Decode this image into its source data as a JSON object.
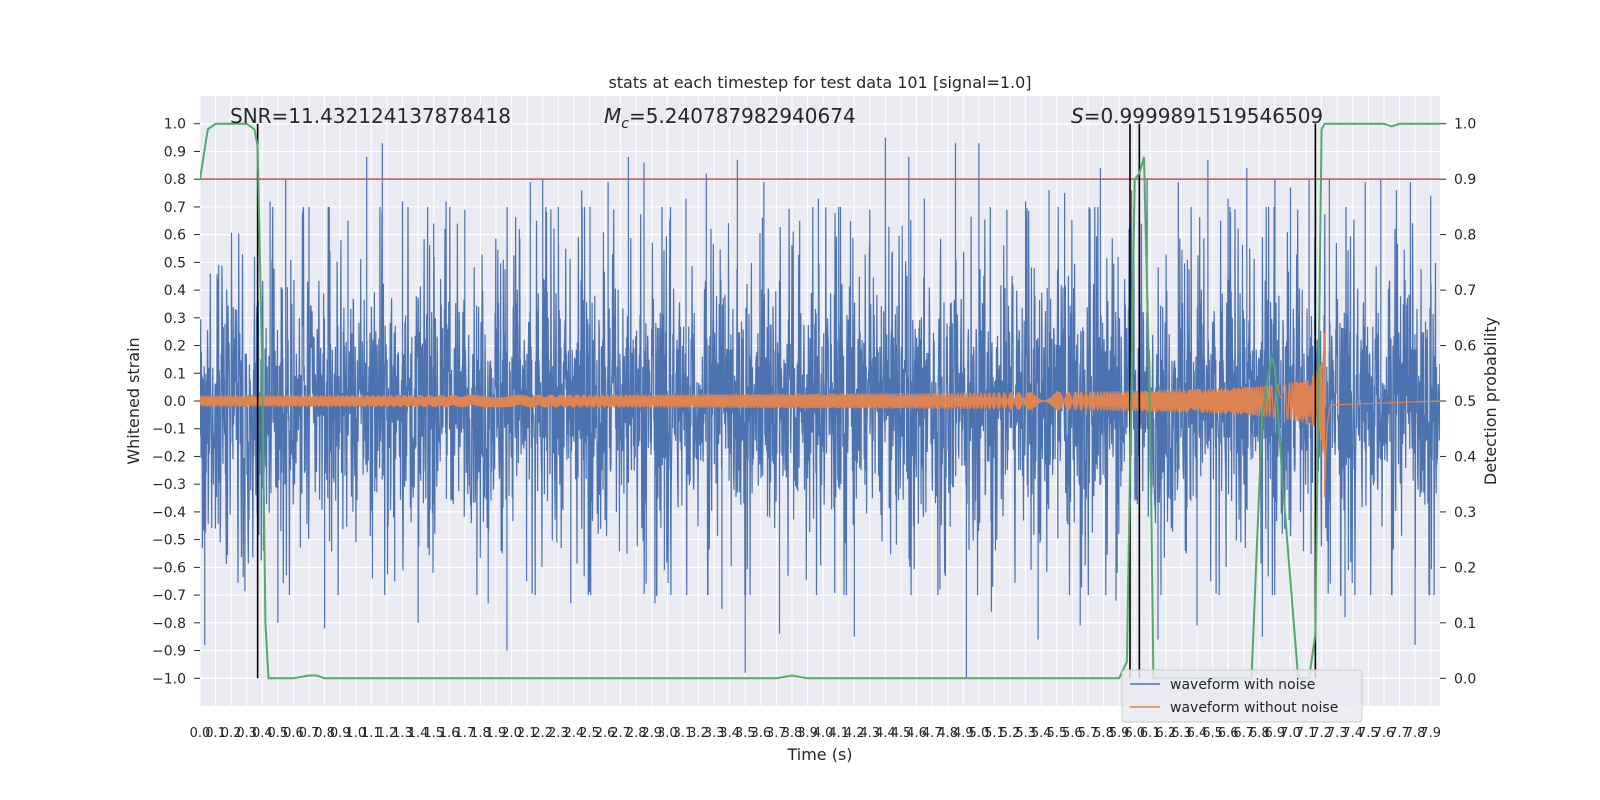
{
  "chart_data": {
    "type": "line",
    "title": "stats at each timestep for test data 101 [signal=1.0]",
    "xlabel": "Time (s)",
    "ylabel": "Whitened strain",
    "y2label": "Detection probability",
    "xlim": [
      0.0,
      7.96
    ],
    "ylim": [
      -1.1,
      1.1
    ],
    "y2lim": [
      -0.05,
      1.05
    ],
    "xticks": [
      "0.0",
      "0.1",
      "0.2",
      "0.3",
      "0.4",
      "0.5",
      "0.6",
      "0.7",
      "0.8",
      "0.9",
      "1.0",
      "1.1",
      "1.2",
      "1.3",
      "1.4",
      "1.5",
      "1.6",
      "1.7",
      "1.8",
      "1.9",
      "2.0",
      "2.1",
      "2.2",
      "2.3",
      "2.4",
      "2.5",
      "2.6",
      "2.7",
      "2.8",
      "2.9",
      "3.0",
      "3.1",
      "3.2",
      "3.3",
      "3.4",
      "3.5",
      "3.6",
      "3.7",
      "3.8",
      "3.9",
      "4.0",
      "4.1",
      "4.2",
      "4.3",
      "4.4",
      "4.5",
      "4.6",
      "4.7",
      "4.8",
      "4.9",
      "5.0",
      "5.1",
      "5.2",
      "5.3",
      "5.4",
      "5.5",
      "5.6",
      "5.7",
      "5.8",
      "5.9",
      "6.0",
      "6.1",
      "6.2",
      "6.3",
      "6.4",
      "6.5",
      "6.6",
      "6.7",
      "6.8",
      "6.9",
      "7.0",
      "7.1",
      "7.2",
      "7.3",
      "7.4",
      "7.5",
      "7.6",
      "7.7",
      "7.8",
      "7.9"
    ],
    "yticks": [
      "−1.0",
      "−0.9",
      "−0.8",
      "−0.7",
      "−0.6",
      "−0.5",
      "−0.4",
      "−0.3",
      "−0.2",
      "−0.1",
      "0.0",
      "0.1",
      "0.2",
      "0.3",
      "0.4",
      "0.5",
      "0.6",
      "0.7",
      "0.8",
      "0.9",
      "1.0"
    ],
    "y2ticks": [
      "0.0",
      "0.1",
      "0.2",
      "0.3",
      "0.4",
      "0.5",
      "0.6",
      "0.7",
      "0.8",
      "0.9",
      "1.0"
    ],
    "grid": true,
    "legend_position": "lower-right",
    "threshold": {
      "y2": 0.9,
      "color": "#c44e52"
    },
    "vertical_lines": [
      0.37,
      5.97,
      6.03,
      7.16
    ],
    "annotations": {
      "snr": "SNR=11.432124137878418",
      "mc_symbol": "M",
      "mc_sub": "c",
      "mc_value": "=5.240787982940674",
      "s_symbol": "S",
      "s_value": "=0.9999891519546509"
    },
    "series": [
      {
        "name": "waveform with noise",
        "color": "#4c72b0",
        "kind": "noise",
        "envelope": [
          0.3,
          0.45
        ],
        "spikes": [
          [
            0.03,
            -0.88
          ],
          [
            0.12,
            0.49
          ],
          [
            0.35,
            0.52
          ],
          [
            0.45,
            0.72
          ],
          [
            0.5,
            -0.8
          ],
          [
            0.55,
            0.8
          ],
          [
            0.7,
            0.7
          ],
          [
            0.8,
            -0.82
          ],
          [
            0.95,
            0.65
          ],
          [
            1.07,
            0.88
          ],
          [
            1.17,
            0.93
          ],
          [
            1.25,
            -0.65
          ],
          [
            1.3,
            0.72
          ],
          [
            1.4,
            -0.8
          ],
          [
            1.5,
            0.64
          ],
          [
            1.58,
            0.72
          ],
          [
            1.7,
            0.69
          ],
          [
            1.85,
            -0.73
          ],
          [
            1.97,
            -0.9
          ],
          [
            2.05,
            0.62
          ],
          [
            2.12,
            0.79
          ],
          [
            2.2,
            0.8
          ],
          [
            2.3,
            0.7
          ],
          [
            2.38,
            -0.73
          ],
          [
            2.45,
            0.76
          ],
          [
            2.5,
            -0.69
          ],
          [
            2.62,
            0.79
          ],
          [
            2.75,
            0.88
          ],
          [
            2.85,
            0.86
          ],
          [
            2.92,
            -0.73
          ],
          [
            3.02,
            0.7
          ],
          [
            3.12,
            0.73
          ],
          [
            3.25,
            0.82
          ],
          [
            3.35,
            -0.75
          ],
          [
            3.45,
            0.87
          ],
          [
            3.5,
            -0.98
          ],
          [
            3.62,
            0.79
          ],
          [
            3.72,
            -0.84
          ],
          [
            3.85,
            0.65
          ],
          [
            3.97,
            0.73
          ],
          [
            4.1,
            0.7
          ],
          [
            4.2,
            -0.85
          ],
          [
            4.3,
            0.69
          ],
          [
            4.4,
            0.95
          ],
          [
            4.55,
            0.88
          ],
          [
            4.65,
            0.73
          ],
          [
            4.75,
            -0.68
          ],
          [
            4.85,
            0.93
          ],
          [
            4.92,
            -1.0
          ],
          [
            5.0,
            0.93
          ],
          [
            5.08,
            -0.76
          ],
          [
            5.18,
            0.69
          ],
          [
            5.3,
            0.72
          ],
          [
            5.38,
            -0.86
          ],
          [
            5.45,
            0.76
          ],
          [
            5.55,
            0.75
          ],
          [
            5.65,
            -0.81
          ],
          [
            5.78,
            0.84
          ],
          [
            5.88,
            -0.72
          ],
          [
            5.98,
            0.76
          ],
          [
            6.08,
            0.8
          ],
          [
            6.15,
            -0.86
          ],
          [
            6.28,
            0.79
          ],
          [
            6.4,
            -0.81
          ],
          [
            6.47,
            0.87
          ],
          [
            6.6,
            0.73
          ],
          [
            6.72,
            0.84
          ],
          [
            6.82,
            -0.85
          ],
          [
            6.9,
            0.8
          ],
          [
            7.0,
            0.77
          ],
          [
            7.12,
            0.8
          ],
          [
            7.25,
            0.8
          ],
          [
            7.35,
            -0.78
          ],
          [
            7.48,
            0.79
          ],
          [
            7.58,
            0.8
          ],
          [
            7.68,
            0.76
          ],
          [
            7.77,
            0.79
          ],
          [
            7.8,
            -0.88
          ],
          [
            7.9,
            0.74
          ]
        ]
      },
      {
        "name": "waveform without noise",
        "color": "#dd8452",
        "kind": "chirp",
        "start_amplitude": 0.02,
        "peak_time": 7.22,
        "peak_amplitude": 0.27,
        "trough_amplitude": -0.35,
        "end_time": 7.26
      },
      {
        "name": "detection probability",
        "color": "#55a868",
        "axis": "right",
        "x": [
          0.0,
          0.05,
          0.1,
          0.2,
          0.3,
          0.35,
          0.37,
          0.4,
          0.42,
          0.44,
          0.5,
          0.6,
          0.7,
          0.75,
          0.8,
          1.0,
          2.0,
          3.0,
          3.7,
          3.8,
          3.9,
          4.0,
          5.0,
          5.5,
          5.8,
          5.9,
          5.95,
          6.0,
          6.03,
          6.06,
          6.1,
          6.12,
          6.2,
          6.5,
          6.75,
          6.82,
          6.88,
          6.9,
          6.95,
          7.05,
          7.08,
          7.12,
          7.16,
          7.2,
          7.22,
          7.5,
          7.6,
          7.65,
          7.7,
          7.96
        ],
        "y": [
          0.9,
          0.99,
          1.0,
          1.0,
          1.0,
          0.99,
          0.96,
          0.55,
          0.1,
          0.0,
          0.0,
          0.0,
          0.005,
          0.005,
          0.0,
          0.0,
          0.0,
          0.0,
          0.0,
          0.005,
          0.0,
          0.0,
          0.0,
          0.0,
          0.0,
          0.0,
          0.03,
          0.9,
          0.91,
          0.94,
          0.45,
          0.0,
          0.0,
          0.0,
          0.0,
          0.48,
          0.58,
          0.56,
          0.35,
          0.0,
          0.0,
          0.0,
          0.08,
          0.99,
          1.0,
          1.0,
          1.0,
          0.995,
          1.0,
          1.0
        ]
      }
    ]
  }
}
